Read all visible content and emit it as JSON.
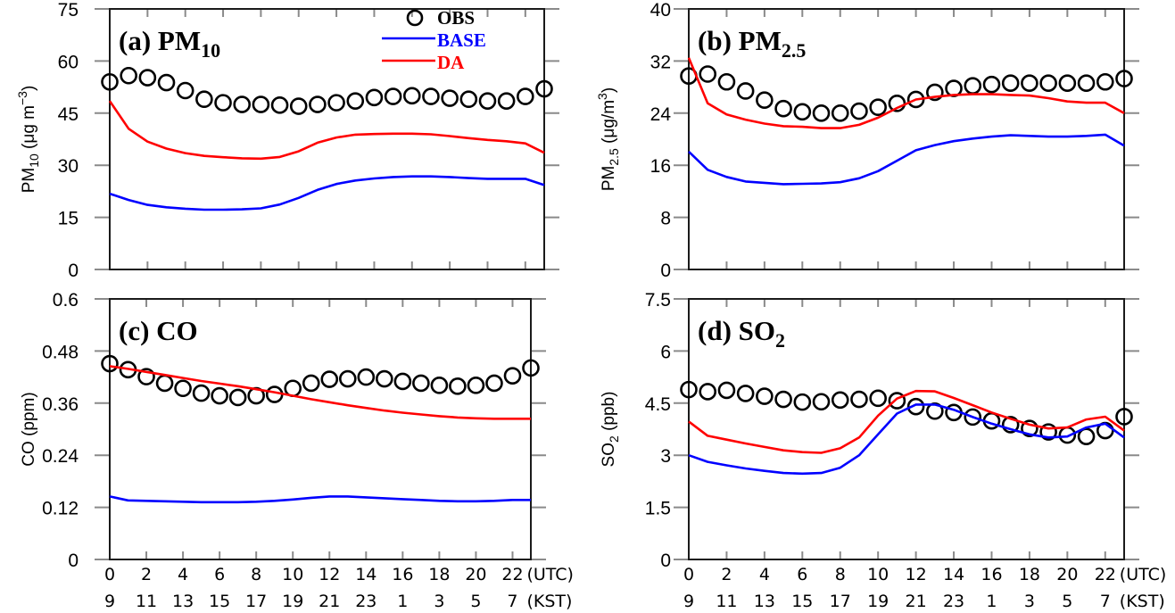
{
  "figure": {
    "x_axis_unit_utc": "(UTC)",
    "x_axis_unit_kst": "(KST)",
    "utc_tick_labels": [
      "0",
      "2",
      "4",
      "6",
      "8",
      "10",
      "12",
      "14",
      "16",
      "18",
      "20",
      "22"
    ],
    "kst_tick_labels": [
      "9",
      "11",
      "13",
      "15",
      "17",
      "19",
      "21",
      "23",
      "1",
      "3",
      "5",
      "7"
    ]
  },
  "legend": {
    "placement": "top-right of panel (a)",
    "entries": [
      {
        "name": "OBS",
        "marker": "circle",
        "color": "#000000"
      },
      {
        "name": "BASE",
        "marker": "line",
        "color": "#0000ff"
      },
      {
        "name": "DA",
        "marker": "line",
        "color": "#ff0000"
      }
    ]
  },
  "chart_data": [
    {
      "type": "line",
      "id": "a",
      "title": "(a) PM",
      "title_sub": "10",
      "ylabel": "PM10 (μg m-3)",
      "ylabel_main": "PM",
      "ylabel_sub": "10",
      "ylabel_rest": " (μg m",
      "ylabel_sup": "−3",
      "ylabel_end": ")",
      "xlabel": "",
      "ylim": [
        0,
        75
      ],
      "yticks": [
        0,
        15,
        30,
        45,
        60,
        75
      ],
      "ytick_labels": [
        "0",
        "15",
        "30",
        "45",
        "60",
        "75"
      ],
      "x": [
        0,
        1,
        2,
        3,
        4,
        5,
        6,
        7,
        8,
        9,
        10,
        11,
        12,
        13,
        14,
        15,
        16,
        17,
        18,
        19,
        20,
        21,
        22,
        23
      ],
      "show_x_labels": false,
      "series": [
        {
          "name": "OBS",
          "style": "marker",
          "color": "#000000",
          "values": [
            54.0,
            55.8,
            55.2,
            53.8,
            51.5,
            49.0,
            48.0,
            47.5,
            47.5,
            47.3,
            47.0,
            47.5,
            48.0,
            48.5,
            49.5,
            49.8,
            50.0,
            49.8,
            49.3,
            49.0,
            48.5,
            48.5,
            49.8,
            52.0
          ]
        },
        {
          "name": "BASE",
          "style": "line",
          "color": "#0000ff",
          "values": [
            21.8,
            20.0,
            18.6,
            17.9,
            17.5,
            17.2,
            17.2,
            17.3,
            17.6,
            18.7,
            20.6,
            22.9,
            24.6,
            25.6,
            26.2,
            26.6,
            26.8,
            26.8,
            26.6,
            26.3,
            26.1,
            26.1,
            26.1,
            24.3
          ]
        },
        {
          "name": "DA",
          "style": "line",
          "color": "#ff0000",
          "values": [
            48.5,
            40.5,
            36.8,
            34.8,
            33.5,
            32.7,
            32.3,
            32.0,
            31.9,
            32.4,
            34.0,
            36.5,
            38.0,
            38.8,
            39.0,
            39.1,
            39.1,
            38.9,
            38.4,
            37.8,
            37.3,
            36.9,
            36.3,
            33.6
          ]
        }
      ]
    },
    {
      "type": "line",
      "id": "b",
      "title": "(b) PM",
      "title_sub": "2.5",
      "ylabel": "PM2.5 (μg/m3)",
      "ylabel_main": "PM",
      "ylabel_sub": "2.5",
      "ylabel_rest": " (μg/m",
      "ylabel_sup": "3",
      "ylabel_end": ")",
      "xlabel": "",
      "ylim": [
        0,
        40
      ],
      "yticks": [
        0,
        8,
        16,
        24,
        32,
        40
      ],
      "ytick_labels": [
        "0",
        "8",
        "16",
        "24",
        "32",
        "40"
      ],
      "x": [
        0,
        1,
        2,
        3,
        4,
        5,
        6,
        7,
        8,
        9,
        10,
        11,
        12,
        13,
        14,
        15,
        16,
        17,
        18,
        19,
        20,
        21,
        22,
        23
      ],
      "show_x_labels": false,
      "series": [
        {
          "name": "OBS",
          "style": "marker",
          "color": "#000000",
          "values": [
            29.7,
            30.0,
            28.8,
            27.4,
            26.0,
            24.7,
            24.2,
            24.0,
            24.0,
            24.3,
            24.9,
            25.5,
            26.1,
            27.2,
            27.8,
            28.2,
            28.4,
            28.6,
            28.6,
            28.6,
            28.6,
            28.6,
            28.8,
            29.3
          ]
        },
        {
          "name": "BASE",
          "style": "line",
          "color": "#0000ff",
          "values": [
            18.1,
            15.3,
            14.2,
            13.5,
            13.3,
            13.1,
            13.15,
            13.2,
            13.4,
            14.0,
            15.1,
            16.7,
            18.3,
            19.1,
            19.7,
            20.1,
            20.4,
            20.6,
            20.5,
            20.4,
            20.4,
            20.5,
            20.7,
            19.0
          ]
        },
        {
          "name": "DA",
          "style": "line",
          "color": "#ff0000",
          "values": [
            32.5,
            25.5,
            23.8,
            23.0,
            22.4,
            22.0,
            21.9,
            21.7,
            21.7,
            22.2,
            23.3,
            24.8,
            26.1,
            26.5,
            26.8,
            26.9,
            26.9,
            26.8,
            26.7,
            26.3,
            25.8,
            25.6,
            25.6,
            24.0
          ]
        }
      ]
    },
    {
      "type": "line",
      "id": "c",
      "title": "(c) CO",
      "title_sub": "",
      "ylabel": "CO (ppm)",
      "ylabel_main": "CO (ppm)",
      "ylabel_sub": "",
      "ylabel_rest": "",
      "ylabel_sup": "",
      "ylabel_end": "",
      "xlabel": "(UTC) / (KST)",
      "ylim": [
        0,
        0.6
      ],
      "yticks": [
        0,
        0.12,
        0.24,
        0.36,
        0.48,
        0.6
      ],
      "ytick_labels": [
        "0",
        "0.12",
        "0.24",
        "0.36",
        "0.48",
        "0.6"
      ],
      "x": [
        0,
        1,
        2,
        3,
        4,
        5,
        6,
        7,
        8,
        9,
        10,
        11,
        12,
        13,
        14,
        15,
        16,
        17,
        18,
        19,
        20,
        21,
        22,
        23
      ],
      "show_x_labels": true,
      "series": [
        {
          "name": "OBS",
          "style": "marker",
          "color": "#000000",
          "values": [
            0.451,
            0.437,
            0.421,
            0.406,
            0.394,
            0.383,
            0.377,
            0.373,
            0.377,
            0.38,
            0.394,
            0.406,
            0.415,
            0.416,
            0.42,
            0.416,
            0.41,
            0.406,
            0.401,
            0.399,
            0.401,
            0.406,
            0.423,
            0.441
          ]
        },
        {
          "name": "BASE",
          "style": "line",
          "color": "#0000ff",
          "values": [
            0.145,
            0.136,
            0.135,
            0.134,
            0.133,
            0.132,
            0.132,
            0.132,
            0.133,
            0.135,
            0.138,
            0.142,
            0.145,
            0.145,
            0.143,
            0.141,
            0.139,
            0.137,
            0.135,
            0.134,
            0.134,
            0.135,
            0.137,
            0.137
          ]
        },
        {
          "name": "DA",
          "style": "line",
          "color": "#ff0000",
          "values": [
            0.445,
            0.439,
            0.432,
            0.425,
            0.418,
            0.411,
            0.405,
            0.399,
            0.392,
            0.385,
            0.377,
            0.369,
            0.362,
            0.355,
            0.349,
            0.343,
            0.338,
            0.334,
            0.33,
            0.327,
            0.325,
            0.324,
            0.324,
            0.324
          ]
        }
      ]
    },
    {
      "type": "line",
      "id": "d",
      "title": "(d) SO",
      "title_sub": "2",
      "ylabel": "SO2 (ppb)",
      "ylabel_main": "SO",
      "ylabel_sub": "2",
      "ylabel_rest": " (ppb)",
      "ylabel_sup": "",
      "ylabel_end": "",
      "xlabel": "(UTC) / (KST)",
      "ylim": [
        0,
        7.5
      ],
      "yticks": [
        0,
        1.5,
        3,
        4.5,
        6,
        7.5
      ],
      "ytick_labels": [
        "0",
        "1.5",
        "3",
        "4.5",
        "6",
        "7.5"
      ],
      "x": [
        0,
        1,
        2,
        3,
        4,
        5,
        6,
        7,
        8,
        9,
        10,
        11,
        12,
        13,
        14,
        15,
        16,
        17,
        18,
        19,
        20,
        21,
        22,
        23
      ],
      "show_x_labels": true,
      "series": [
        {
          "name": "OBS",
          "style": "marker",
          "color": "#000000",
          "values": [
            4.89,
            4.83,
            4.87,
            4.78,
            4.7,
            4.61,
            4.53,
            4.54,
            4.59,
            4.61,
            4.64,
            4.57,
            4.4,
            4.27,
            4.23,
            4.1,
            3.99,
            3.88,
            3.77,
            3.67,
            3.58,
            3.54,
            3.71,
            4.11
          ]
        },
        {
          "name": "BASE",
          "style": "line",
          "color": "#0000ff",
          "values": [
            3.0,
            2.81,
            2.71,
            2.62,
            2.55,
            2.49,
            2.47,
            2.49,
            2.64,
            3.0,
            3.6,
            4.2,
            4.46,
            4.46,
            4.31,
            4.1,
            3.91,
            3.75,
            3.6,
            3.51,
            3.54,
            3.8,
            3.91,
            3.51
          ]
        },
        {
          "name": "DA",
          "style": "line",
          "color": "#ff0000",
          "values": [
            3.97,
            3.56,
            3.45,
            3.34,
            3.24,
            3.14,
            3.09,
            3.07,
            3.2,
            3.51,
            4.14,
            4.63,
            4.85,
            4.84,
            4.65,
            4.44,
            4.23,
            4.05,
            3.88,
            3.77,
            3.8,
            4.03,
            4.11,
            3.71
          ]
        }
      ]
    }
  ]
}
